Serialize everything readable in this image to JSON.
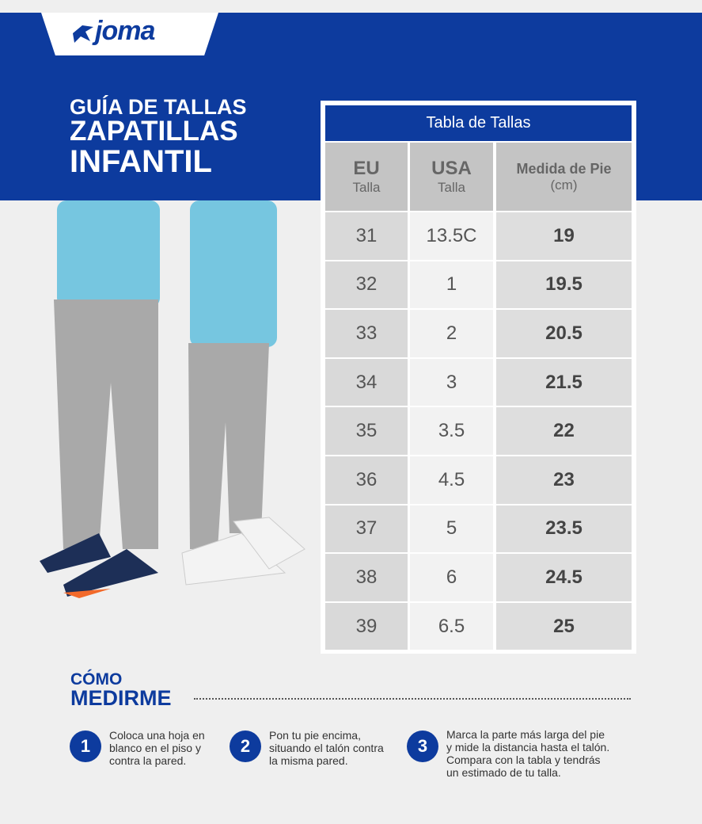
{
  "brand": "joma",
  "header": {
    "title_lines": [
      "GUÍA DE TALLAS",
      "ZAPATILLAS",
      "INFANTIL"
    ]
  },
  "table": {
    "title": "Tabla de Tallas",
    "columns": [
      {
        "main": "EU",
        "sub": "Talla"
      },
      {
        "main": "USA",
        "sub": "Talla"
      },
      {
        "main": "Medida de Pie",
        "sub": "(cm)"
      }
    ],
    "rows": [
      [
        "31",
        "13.5C",
        "19"
      ],
      [
        "32",
        "1",
        "19.5"
      ],
      [
        "33",
        "2",
        "20.5"
      ],
      [
        "34",
        "3",
        "21.5"
      ],
      [
        "35",
        "3.5",
        "22"
      ],
      [
        "36",
        "4.5",
        "23"
      ],
      [
        "37",
        "5",
        "23.5"
      ],
      [
        "38",
        "6",
        "24.5"
      ],
      [
        "39",
        "6.5",
        "25"
      ]
    ]
  },
  "howto": {
    "title_top": "CÓMO",
    "title_bottom": "MEDIRME",
    "steps": [
      {
        "number": "1",
        "lines": [
          "Coloca una hoja en",
          "blanco en el piso y",
          "contra la pared."
        ]
      },
      {
        "number": "2",
        "lines": [
          "Pon tu pie encima,",
          "situando el talón contra",
          "la misma pared."
        ]
      },
      {
        "number": "3",
        "lines": [
          "Marca la parte más larga del pie",
          "y mide la distancia hasta el talón.",
          "Compara con la tabla y tendrás",
          "un estimado de tu talla."
        ]
      }
    ]
  }
}
